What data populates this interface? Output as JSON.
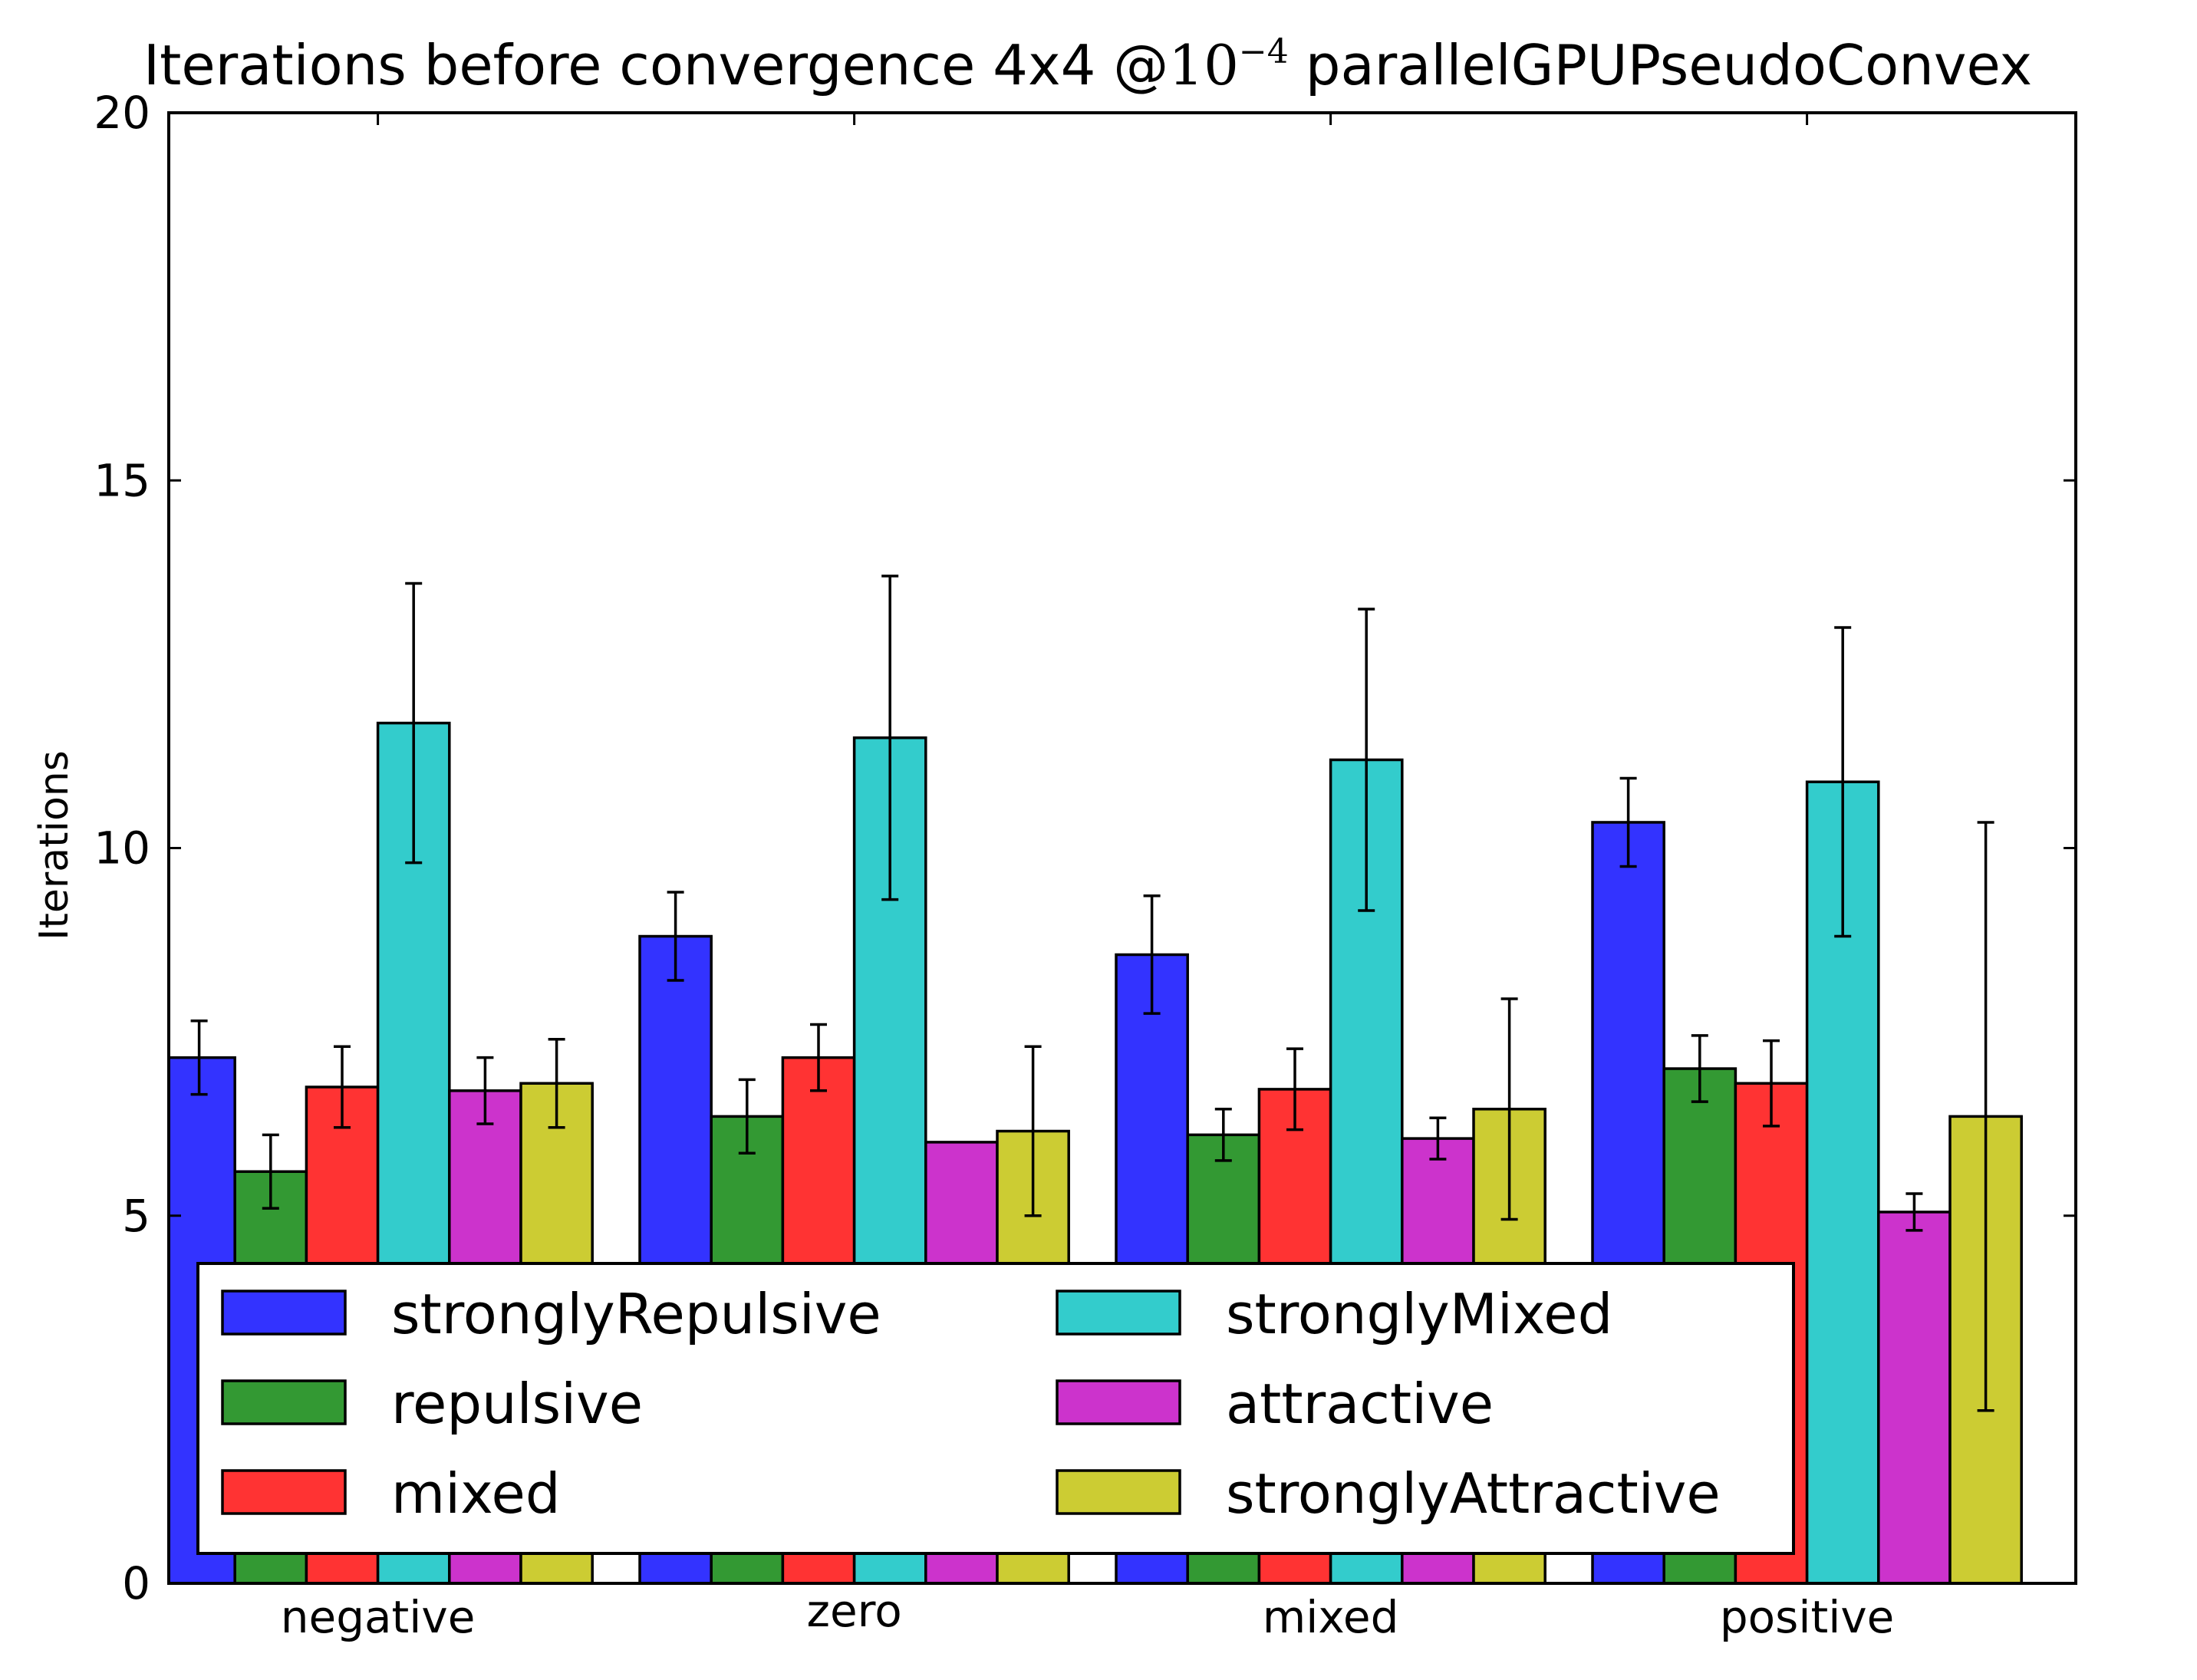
{
  "chart_data": {
    "type": "bar",
    "title": "Iterations before convergence 4x4 @10⁻⁴ parallelGPUPseudoConvex",
    "title_parts": {
      "prefix": "Iterations before convergence 4x4 @",
      "base": "10",
      "exponent": "−4",
      "suffix": "parallelGPUPseudoConvex"
    },
    "xlabel": "",
    "ylabel": "Iterations",
    "ylim": [
      0,
      20
    ],
    "yticks": [
      "0",
      "5",
      "10",
      "15",
      "20"
    ],
    "categories": [
      "negative",
      "zero",
      "mixed",
      "positive"
    ],
    "series": [
      {
        "name": "stronglyRepulsive",
        "color": "#3333ff",
        "values": [
          7.15,
          8.8,
          8.55,
          10.35
        ],
        "errors": [
          0.5,
          0.6,
          0.8,
          0.6
        ]
      },
      {
        "name": "repulsive",
        "color": "#339933",
        "values": [
          5.6,
          6.35,
          6.1,
          7.0
        ],
        "errors": [
          0.5,
          0.5,
          0.35,
          0.45
        ]
      },
      {
        "name": "mixed",
        "color": "#ff3333",
        "values": [
          6.75,
          7.15,
          6.72,
          6.8
        ],
        "errors": [
          0.55,
          0.45,
          0.55,
          0.58
        ]
      },
      {
        "name": "stronglyMixed",
        "color": "#33cccc",
        "values": [
          11.7,
          11.5,
          11.2,
          10.9
        ],
        "errors": [
          1.9,
          2.2,
          2.05,
          2.1
        ]
      },
      {
        "name": "attractive",
        "color": "#cc33cc",
        "values": [
          6.7,
          6.0,
          6.05,
          5.05
        ],
        "errors": [
          0.45,
          0.0,
          0.28,
          0.25
        ]
      },
      {
        "name": "stronglyAttractive",
        "color": "#cccc33",
        "values": [
          6.8,
          6.15,
          6.45,
          6.35
        ],
        "errors": [
          0.6,
          1.15,
          1.5,
          4.0
        ]
      }
    ],
    "legend": {
      "placement": "lower-left",
      "columns": 2
    },
    "grid": false
  }
}
